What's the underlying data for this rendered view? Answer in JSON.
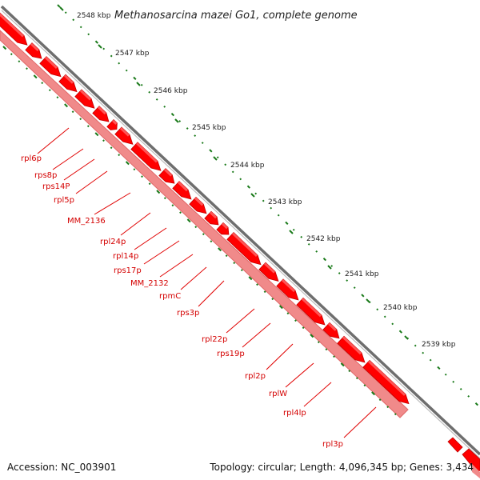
{
  "title": "Methanosarcina mazei Go1, complete genome",
  "ticks": [
    "2548 kbp",
    "2547 kbp",
    "2546 kbp",
    "2545 kbp",
    "2544 kbp",
    "2543 kbp",
    "2542 kbp",
    "2541 kbp",
    "2540 kbp",
    "2539 kbp"
  ],
  "genes": [
    "rpl6p",
    "rps8p",
    "rps14P",
    "rpl5p",
    "MM_2136",
    "rpl24p",
    "rpl14p",
    "rps17p",
    "MM_2132",
    "rpmC",
    "rps3p",
    "rpl22p",
    "rps19p",
    "rpl2p",
    "rplW",
    "rpl4lp",
    "rpl3p"
  ],
  "footer": {
    "accession": "Accession: NC_003901",
    "topology": "Topology: circular; Length: 4,096,345 bp; Genes: 3,434"
  },
  "colors": {
    "gene": "#ff0000",
    "gene_light": "#f08080",
    "gc": "#1a7a1a",
    "backbone": "#8a8a8a"
  }
}
